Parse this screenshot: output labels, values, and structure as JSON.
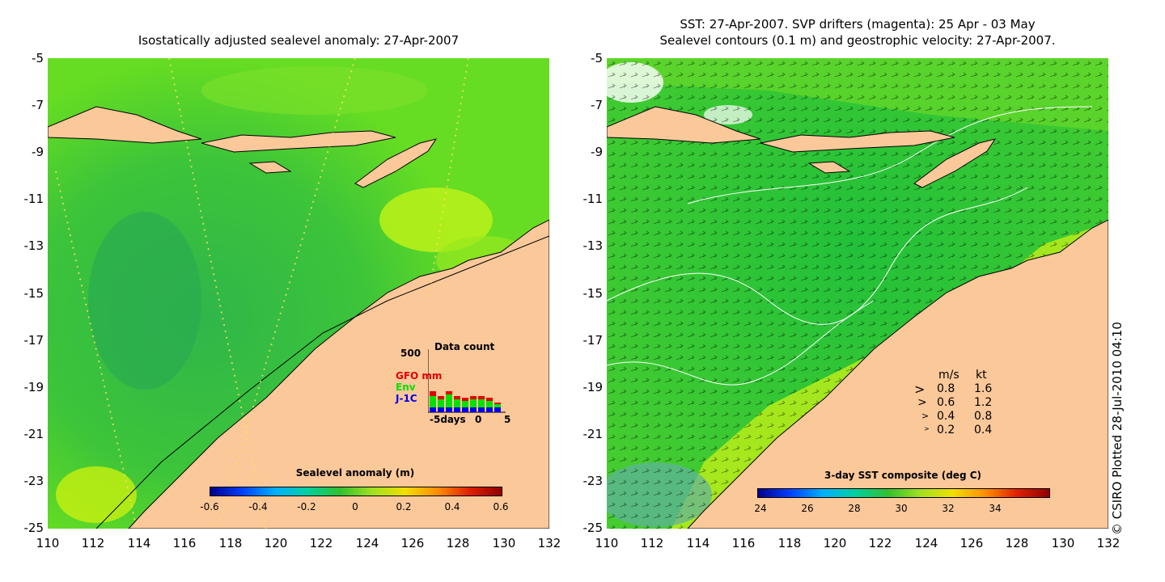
{
  "left_panel": {
    "title": "Isostatically adjusted sealevel anomaly: 27-Apr-2007",
    "colorbar": {
      "title": "Sealevel anomaly (m)",
      "labels": [
        "-0.6",
        "-0.4",
        "-0.2",
        "0",
        "0.2",
        "0.4",
        "0.6"
      ]
    },
    "inset": {
      "title": "Data count",
      "ymax_label": "500",
      "legend": [
        {
          "label": "GFO mm",
          "color": "#e00000"
        },
        {
          "label": "Env",
          "color": "#00e000"
        },
        {
          "label": "J-1C",
          "color": "#0000e0"
        }
      ],
      "x_labels": [
        "-5days",
        "0",
        "5"
      ]
    }
  },
  "right_panel": {
    "title_line1": "SST: 27-Apr-2007. SVP drifters (magenta): 25 Apr - 03 May",
    "title_line2": "Sealevel contours (0.1 m) and geostrophic velocity: 27-Apr-2007.",
    "colorbar": {
      "title": "3-day SST composite (deg C)",
      "labels": [
        "24",
        "26",
        "28",
        "30",
        "32",
        "34"
      ]
    },
    "velocity_legend": {
      "header_ms": "m/s",
      "header_kt": "kt",
      "rows": [
        {
          "ms": "0.8",
          "kt": "1.6"
        },
        {
          "ms": "0.6",
          "kt": "1.2"
        },
        {
          "ms": "0.4",
          "kt": "0.8"
        },
        {
          "ms": "0.2",
          "kt": "0.4"
        }
      ]
    }
  },
  "axes": {
    "y_labels": [
      "-5",
      "-7",
      "-9",
      "-11",
      "-13",
      "-15",
      "-17",
      "-19",
      "-21",
      "-23",
      "-25"
    ],
    "x_labels": [
      "110",
      "112",
      "114",
      "116",
      "118",
      "120",
      "122",
      "124",
      "126",
      "128",
      "130",
      "132"
    ]
  },
  "credit": "© CSIRO Plotted 28-Jul-2010 04:10",
  "colors": {
    "land": "#fbc89a",
    "ocean_base": "#33cc33",
    "ocean_warm": "#aaee22"
  }
}
